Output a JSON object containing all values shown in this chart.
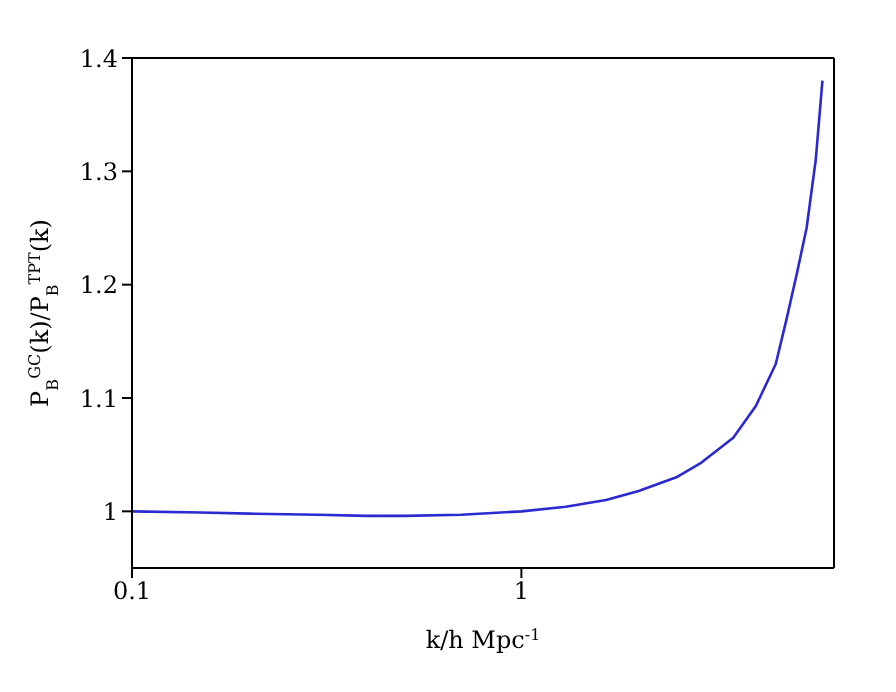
{
  "chart_data": {
    "type": "line",
    "xlabel": "k/h Mpc$^{-1}$",
    "ylabel": "P$_{B}$$^{GC}$(k)/P$_{B}$$^{TPT}$(k)",
    "log": "x",
    "x": [
      0.1,
      0.15,
      0.2,
      0.3,
      0.4,
      0.5,
      0.7,
      1,
      1.3,
      1.65,
      2,
      2.5,
      2.9,
      3.5,
      4,
      4.5,
      4.8,
      5.1,
      5.4,
      5.7,
      5.93
    ],
    "series": [
      {
        "color": "#2a2ad0",
        "values": [
          1.0,
          0.999,
          0.998,
          0.997,
          0.996,
          0.996,
          0.997,
          1.0,
          1.004,
          1.01,
          1.018,
          1.03,
          1.043,
          1.065,
          1.093,
          1.13,
          1.17,
          1.21,
          1.25,
          1.31,
          1.38
        ]
      }
    ],
    "xlim": [
      0.1,
      6.35
    ],
    "xticks": [
      0.1,
      1
    ],
    "ylim": [
      0.95,
      1.4
    ],
    "yticks": [
      1,
      1.1,
      1.2,
      1.3,
      1.4
    ],
    "grid": false,
    "legend": false,
    "marker": "none",
    "line_style": "solid"
  }
}
